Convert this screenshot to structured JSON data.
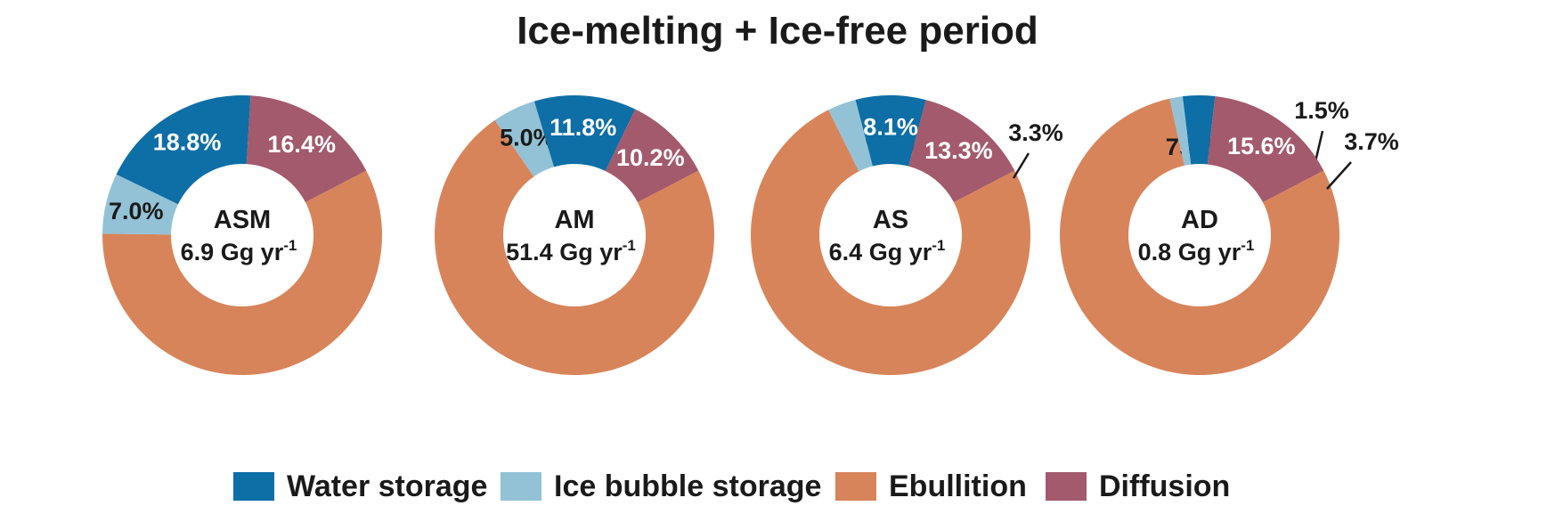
{
  "title": "Ice-melting + Ice-free period",
  "colors": {
    "water_storage": "#0e6ea6",
    "ice_bubble_storage": "#93c2d6",
    "ebullition": "#d8845a",
    "diffusion": "#a35a6c"
  },
  "legend": [
    {
      "label": "Water storage",
      "key": "water_storage"
    },
    {
      "label": "Ice bubble storage",
      "key": "ice_bubble_storage"
    },
    {
      "label": "Ebullition",
      "key": "ebullition"
    },
    {
      "label": "Diffusion",
      "key": "diffusion"
    }
  ],
  "chart_data": [
    {
      "type": "pie",
      "name": "ASM",
      "center_value": "6.9",
      "unit_base": "Gg yr",
      "unit_exp": "-1",
      "slices": [
        {
          "series": "Ebullition",
          "key": "ebullition",
          "value": 57.8,
          "label": "57.8%"
        },
        {
          "series": "Ice bubble storage",
          "key": "ice_bubble_storage",
          "value": 7.0,
          "label": "7.0%"
        },
        {
          "series": "Water storage",
          "key": "water_storage",
          "value": 18.8,
          "label": "18.8%"
        },
        {
          "series": "Diffusion",
          "key": "diffusion",
          "value": 16.4,
          "label": "16.4%"
        }
      ]
    },
    {
      "type": "pie",
      "name": "AM",
      "center_value": "51.4",
      "unit_base": "Gg yr",
      "unit_exp": "-1",
      "slices": [
        {
          "series": "Ebullition",
          "key": "ebullition",
          "value": 73.0,
          "label": "73.0%"
        },
        {
          "series": "Ice bubble storage",
          "key": "ice_bubble_storage",
          "value": 5.0,
          "label": "5.0%"
        },
        {
          "series": "Water storage",
          "key": "water_storage",
          "value": 11.8,
          "label": "11.8%"
        },
        {
          "series": "Diffusion",
          "key": "diffusion",
          "value": 10.2,
          "label": "10.2%"
        }
      ]
    },
    {
      "type": "pie",
      "name": "AS",
      "center_value": "6.4",
      "unit_base": "Gg yr",
      "unit_exp": "-1",
      "slices": [
        {
          "series": "Ebullition",
          "key": "ebullition",
          "value": 75.3,
          "label": "75.3%"
        },
        {
          "series": "Ice bubble storage",
          "key": "ice_bubble_storage",
          "value": 3.3,
          "label": "3.3%"
        },
        {
          "series": "Water storage",
          "key": "water_storage",
          "value": 8.1,
          "label": "8.1%"
        },
        {
          "series": "Diffusion",
          "key": "diffusion",
          "value": 13.3,
          "label": "13.3%"
        }
      ]
    },
    {
      "type": "pie",
      "name": "AD",
      "center_value": "0.8",
      "unit_base": "Gg yr",
      "unit_exp": "-1",
      "slices": [
        {
          "series": "Ebullition",
          "key": "ebullition",
          "value": 79.2,
          "label": "79.2%"
        },
        {
          "series": "Ice bubble storage",
          "key": "ice_bubble_storage",
          "value": 1.5,
          "label": "1.5%"
        },
        {
          "series": "Water storage",
          "key": "water_storage",
          "value": 3.7,
          "label": "3.7%"
        },
        {
          "series": "Diffusion",
          "key": "diffusion",
          "value": 15.6,
          "label": "15.6%"
        }
      ]
    }
  ]
}
